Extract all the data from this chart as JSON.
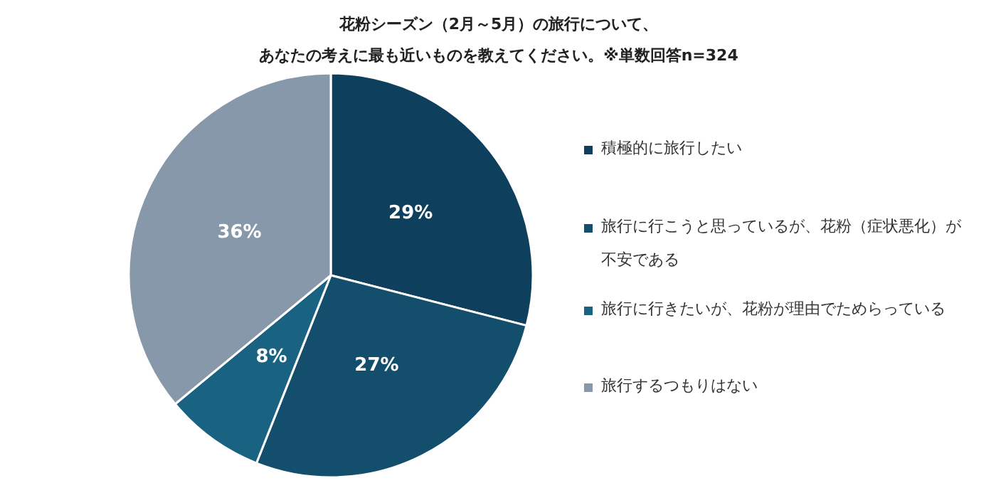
{
  "chart_data": {
    "type": "pie",
    "title": "花粉シーズン（2月～5月）の旅行について、あなたの考えに最も近いものを教えてください。※単数回答n=324",
    "categories": [
      "積極的に旅行したい",
      "旅行に行こうと思っているが、花粉（症状悪化）が不安である",
      "旅行に行きたいが、花粉が理由でためらっている",
      "旅行するつもりはない"
    ],
    "values": [
      29,
      27,
      8,
      36
    ],
    "colors": [
      "#0e3f5c",
      "#134f6c",
      "#1a6282",
      "#8698aa"
    ],
    "value_labels": [
      "29%",
      "27%",
      "8%",
      "36%"
    ],
    "legend": "right"
  }
}
